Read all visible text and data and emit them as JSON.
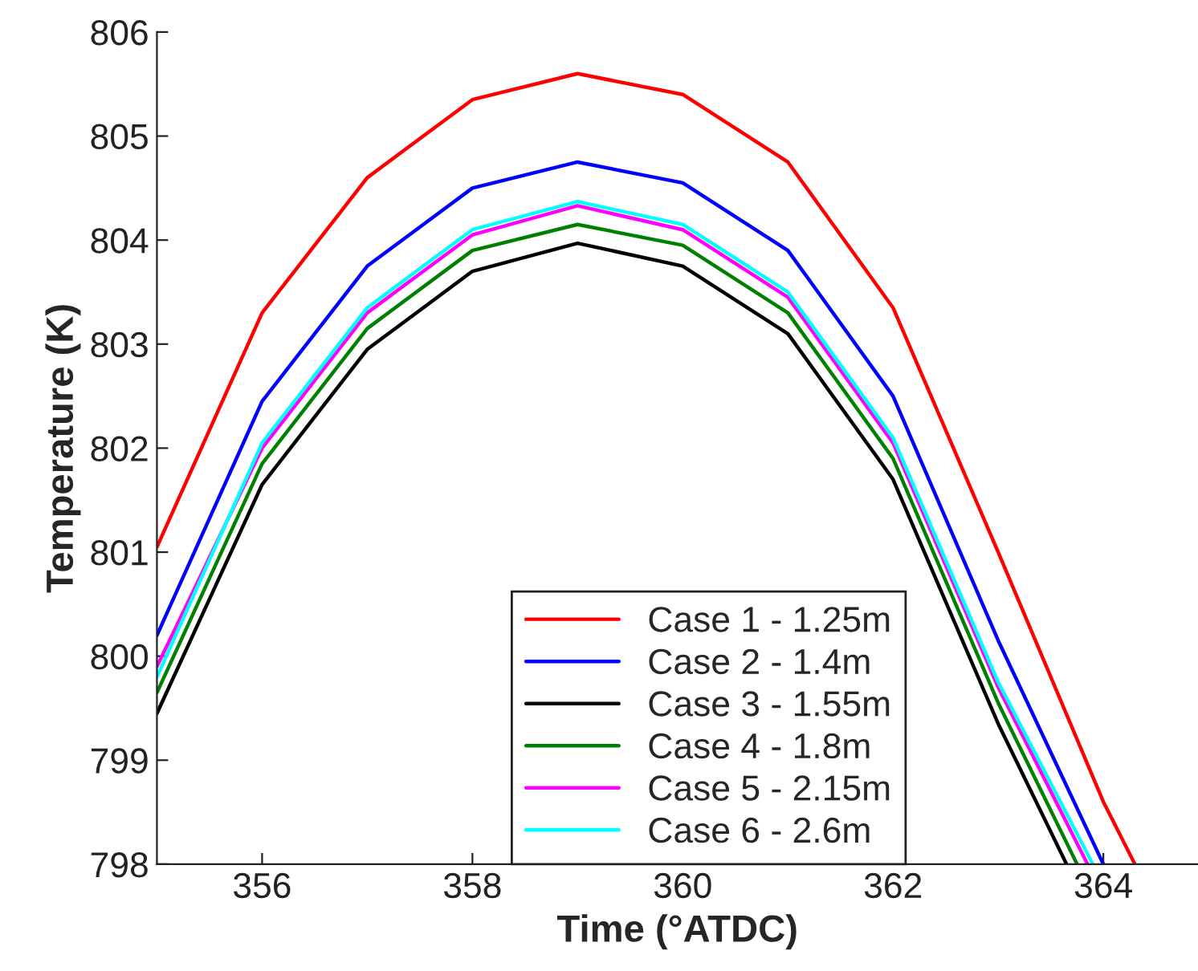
{
  "chart_data": {
    "type": "line",
    "xlabel": "Time (°ATDC)",
    "ylabel": "Temperature (K)",
    "xlim": [
      355,
      364.9
    ],
    "ylim": [
      798,
      806
    ],
    "xticks": [
      356,
      358,
      360,
      362,
      364
    ],
    "yticks": [
      798,
      799,
      800,
      801,
      802,
      803,
      804,
      805,
      806
    ],
    "grid": false,
    "legend": "bottom",
    "marker": "none",
    "line_style": "solid",
    "series": [
      {
        "name": "Case 1 - 1.25m",
        "color": "#ff0000",
        "x": [
          355,
          356,
          357,
          358,
          359,
          360,
          361,
          362,
          363,
          364,
          364.3
        ],
        "values": [
          801.05,
          803.3,
          804.6,
          805.35,
          805.6,
          805.4,
          804.75,
          803.35,
          801.0,
          798.6,
          798.0
        ]
      },
      {
        "name": "Case 2 - 1.4m",
        "color": "#0000ff",
        "x": [
          355,
          356,
          357,
          358,
          359,
          360,
          361,
          362,
          363,
          364
        ],
        "values": [
          800.2,
          802.45,
          803.75,
          804.5,
          804.75,
          804.55,
          803.9,
          802.5,
          800.15,
          798.0
        ]
      },
      {
        "name": "Case 3 - 1.55m",
        "color": "#000000",
        "x": [
          355,
          356,
          357,
          358,
          359,
          360,
          361,
          362,
          363,
          363.65
        ],
        "values": [
          799.45,
          801.65,
          802.95,
          803.7,
          803.97,
          803.75,
          803.1,
          801.7,
          799.35,
          798.0
        ]
      },
      {
        "name": "Case 4 - 1.8m",
        "color": "#008000",
        "x": [
          355,
          356,
          357,
          358,
          359,
          360,
          361,
          362,
          363,
          363.75
        ],
        "values": [
          799.65,
          801.85,
          803.15,
          803.9,
          804.15,
          803.95,
          803.3,
          801.9,
          799.55,
          798.0
        ]
      },
      {
        "name": "Case 5 - 2.15m",
        "color": "#ff00ff",
        "x": [
          355,
          356,
          357,
          358,
          359,
          360,
          361,
          362,
          363,
          363.85
        ],
        "values": [
          799.9,
          802.0,
          803.3,
          804.05,
          804.33,
          804.1,
          803.45,
          802.05,
          799.7,
          798.0
        ]
      },
      {
        "name": "Case 6 - 2.6m",
        "color": "#00ffff",
        "x": [
          355,
          356,
          357,
          358,
          359,
          360,
          361,
          362,
          363,
          363.9
        ],
        "values": [
          799.8,
          802.05,
          803.35,
          804.1,
          804.37,
          804.15,
          803.5,
          802.1,
          799.75,
          798.0
        ]
      }
    ]
  }
}
